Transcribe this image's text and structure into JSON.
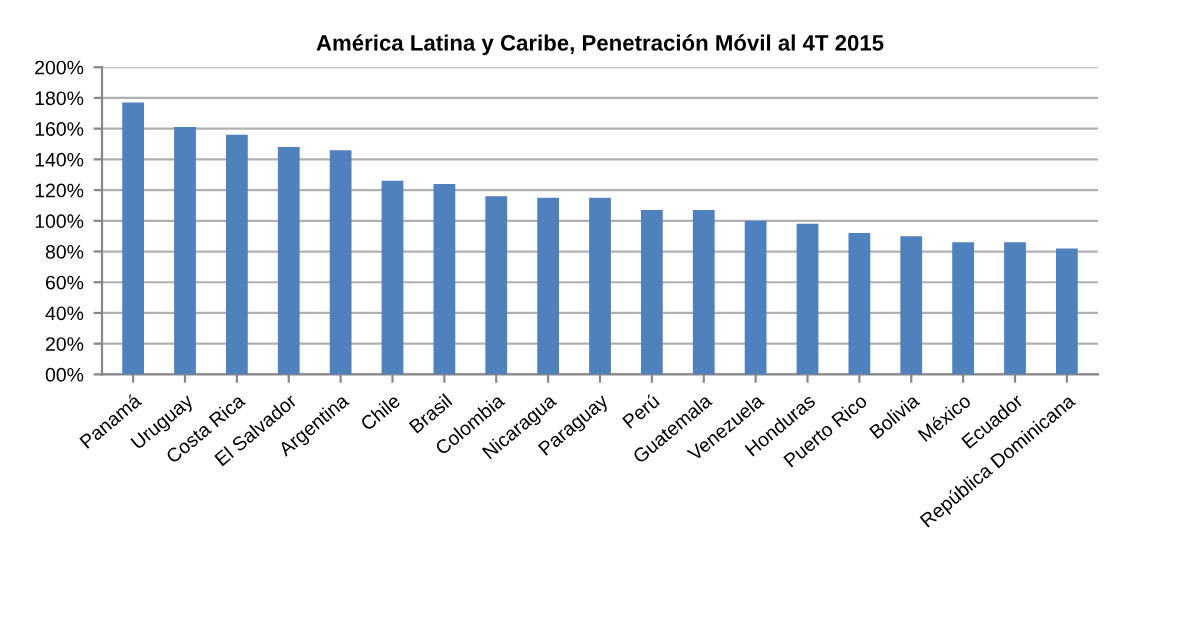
{
  "chart_data": {
    "type": "bar",
    "title": "América Latina y Caribe, Penetración Móvil al 4T 2015",
    "categories": [
      "Panamá",
      "Uruguay",
      "Costa Rica",
      "El Salvador",
      "Argentina",
      "Chile",
      "Brasil",
      "Colombia",
      "Nicaragua",
      "Paraguay",
      "Perú",
      "Guatemala",
      "Venezuela",
      "Honduras",
      "Puerto Rico",
      "Bolivia",
      "México",
      "Ecuador",
      "República Dominicana"
    ],
    "values": [
      177,
      161,
      156,
      148,
      146,
      126,
      124,
      116,
      115,
      115,
      107,
      107,
      100,
      98,
      92,
      90,
      86,
      86,
      82
    ],
    "color": "#4f81bd",
    "ylim": [
      0,
      200
    ],
    "yticks": [
      {
        "value": 0,
        "label": "00%"
      },
      {
        "value": 20,
        "label": "20%"
      },
      {
        "value": 40,
        "label": "40%"
      },
      {
        "value": 60,
        "label": "60%"
      },
      {
        "value": 80,
        "label": "80%"
      },
      {
        "value": 100,
        "label": "100%"
      },
      {
        "value": 120,
        "label": "120%"
      },
      {
        "value": 140,
        "label": "140%"
      },
      {
        "value": 160,
        "label": "160%"
      },
      {
        "value": 180,
        "label": "180%"
      },
      {
        "value": 200,
        "label": "200%"
      }
    ],
    "grid": "y",
    "legend": false
  }
}
